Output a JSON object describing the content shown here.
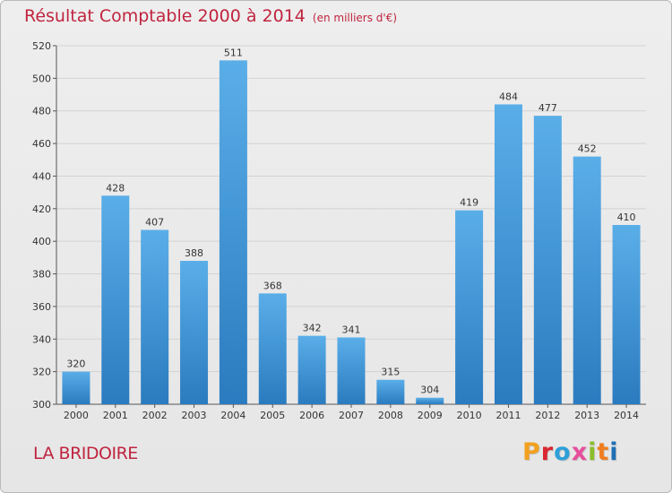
{
  "header": {
    "title": "Résultat Comptable 2000 à 2014",
    "subtitle": "(en milliers d'€)"
  },
  "footer": {
    "commune": "LA BRIDOIRE",
    "logo_text": "Proxiti",
    "logo_colors": [
      "#f2a11f",
      "#d9262f",
      "#2e9fd8",
      "#e64f9b",
      "#8cbd2a",
      "#f07e1f",
      "#1f6fb5"
    ]
  },
  "chart_data": {
    "type": "bar",
    "title": "Résultat Comptable 2000 à 2014",
    "subtitle": "(en milliers d'€)",
    "xlabel": "",
    "ylabel": "",
    "categories": [
      "2000",
      "2001",
      "2002",
      "2003",
      "2004",
      "2005",
      "2006",
      "2007",
      "2008",
      "2009",
      "2010",
      "2011",
      "2012",
      "2013",
      "2014"
    ],
    "values": [
      320,
      428,
      407,
      388,
      511,
      368,
      342,
      341,
      315,
      304,
      419,
      484,
      477,
      452,
      410
    ],
    "ylim": [
      300,
      520
    ],
    "yticks": [
      300,
      320,
      340,
      360,
      380,
      400,
      420,
      440,
      460,
      480,
      500,
      520
    ],
    "grid": true,
    "bar_color_top": "#5aaee8",
    "bar_color_bottom": "#2a7bbf"
  }
}
